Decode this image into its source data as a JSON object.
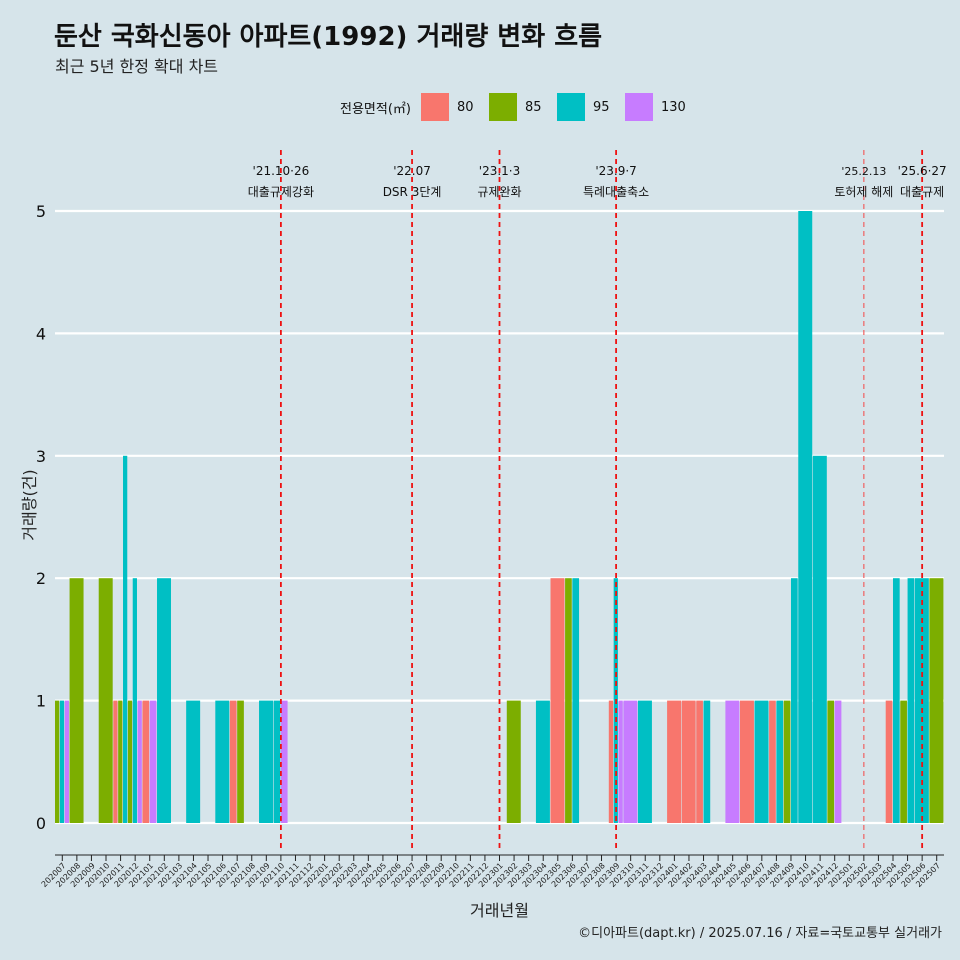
{
  "title": "둔산 국화신동아 아파트(1992) 거래량 변화 흐름",
  "subtitle": "최근 5년 한정 확대 차트",
  "caption": "©디아파트(dapt.kr) / 2025.07.16 / 자료=국토교통부 실거래가",
  "legend": {
    "title": "전용면적(㎡)",
    "items": [
      {
        "label": "80",
        "color": "#f8766d"
      },
      {
        "label": "85",
        "color": "#7cae00"
      },
      {
        "label": "95",
        "color": "#00bfc4"
      },
      {
        "label": "130",
        "color": "#c77cff"
      }
    ]
  },
  "chart_data": {
    "type": "bar",
    "xlabel": "거래년월",
    "ylabel": "거래량(건)",
    "ylim": [
      0,
      5
    ],
    "yticks": [
      0,
      1,
      2,
      3,
      4,
      5
    ],
    "grid": true,
    "categories": [
      "202007",
      "202008",
      "202009",
      "202010",
      "202011",
      "202012",
      "202101",
      "202102",
      "202103",
      "202104",
      "202105",
      "202106",
      "202107",
      "202108",
      "202109",
      "202110",
      "202111",
      "202112",
      "202201",
      "202202",
      "202203",
      "202204",
      "202205",
      "202206",
      "202207",
      "202208",
      "202209",
      "202210",
      "202211",
      "202212",
      "202301",
      "202302",
      "202303",
      "202304",
      "202305",
      "202306",
      "202307",
      "202308",
      "202309",
      "202310",
      "202311",
      "202312",
      "202401",
      "202402",
      "202403",
      "202404",
      "202405",
      "202406",
      "202407",
      "202408",
      "202409",
      "202410",
      "202411",
      "202412",
      "202501",
      "202502",
      "202503",
      "202504",
      "202505",
      "202506",
      "202507"
    ],
    "series": [
      {
        "name": "80",
        "color": "#f8766d",
        "values": [
          0,
          0,
          0,
          0,
          1,
          0,
          1,
          0,
          0,
          0,
          0,
          0,
          1,
          0,
          0,
          0,
          0,
          0,
          0,
          0,
          0,
          0,
          0,
          0,
          0,
          0,
          0,
          0,
          0,
          0,
          0,
          0,
          0,
          0,
          2,
          0,
          0,
          0,
          1,
          0,
          0,
          0,
          1,
          1,
          1,
          0,
          0,
          1,
          0,
          1,
          0,
          0,
          0,
          0,
          0,
          0,
          0,
          1,
          0,
          0,
          0
        ]
      },
      {
        "name": "85",
        "color": "#7cae00",
        "values": [
          1,
          2,
          0,
          2,
          1,
          1,
          0,
          0,
          0,
          0,
          0,
          0,
          1,
          0,
          0,
          0,
          0,
          0,
          0,
          0,
          0,
          0,
          0,
          0,
          0,
          0,
          0,
          0,
          0,
          0,
          0,
          1,
          0,
          0,
          0,
          2,
          0,
          0,
          0,
          0,
          0,
          0,
          0,
          0,
          0,
          0,
          0,
          0,
          0,
          0,
          1,
          0,
          0,
          1,
          0,
          0,
          0,
          0,
          1,
          0,
          2
        ]
      },
      {
        "name": "95",
        "color": "#00bfc4",
        "values": [
          1,
          0,
          0,
          0,
          3,
          2,
          0,
          2,
          0,
          1,
          0,
          1,
          0,
          0,
          1,
          1,
          0,
          0,
          0,
          0,
          0,
          0,
          0,
          0,
          0,
          0,
          0,
          0,
          0,
          0,
          0,
          0,
          0,
          1,
          0,
          2,
          0,
          0,
          2,
          0,
          1,
          0,
          0,
          0,
          1,
          0,
          0,
          0,
          1,
          1,
          2,
          5,
          3,
          0,
          0,
          0,
          0,
          2,
          2,
          2,
          0
        ]
      },
      {
        "name": "130",
        "color": "#c77cff",
        "values": [
          1,
          0,
          0,
          0,
          0,
          1,
          1,
          0,
          0,
          0,
          0,
          0,
          0,
          0,
          0,
          1,
          0,
          0,
          0,
          0,
          0,
          0,
          0,
          0,
          0,
          0,
          0,
          0,
          0,
          0,
          0,
          0,
          0,
          0,
          0,
          0,
          0,
          0,
          1,
          1,
          0,
          0,
          0,
          0,
          0,
          0,
          1,
          0,
          0,
          0,
          0,
          0,
          0,
          1,
          0,
          0,
          0,
          0,
          0,
          0,
          0
        ]
      }
    ],
    "annotations": [
      {
        "month": "202110",
        "date": "'21.10·26",
        "text": "대출규제강화",
        "style": "solid"
      },
      {
        "month": "202207",
        "date": "'22.07",
        "text": "DSR 3단계",
        "style": "solid"
      },
      {
        "month": "202301",
        "date": "'23.1·3",
        "text": "규제완화",
        "style": "solid"
      },
      {
        "month": "202309",
        "date": "'23.9·7",
        "text": "특례대출축소",
        "style": "solid"
      },
      {
        "month": "202502",
        "date": "'25.2.13",
        "text": "토허제 해제",
        "style": "light"
      },
      {
        "month": "202506",
        "date": "'25.6·27",
        "text": "대출규제",
        "style": "solid"
      }
    ]
  }
}
